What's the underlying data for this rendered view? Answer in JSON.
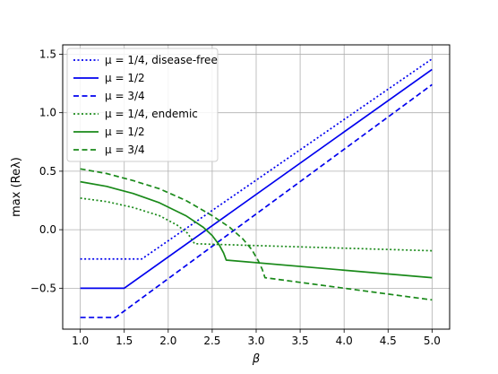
{
  "chart_data": {
    "type": "line",
    "xlabel": "β",
    "ylabel": "max (Reλ)",
    "xlim": [
      0.8,
      5.2
    ],
    "ylim": [
      -0.85,
      1.58
    ],
    "xticks": [
      "1.0",
      "1.5",
      "2.0",
      "2.5",
      "3.0",
      "3.5",
      "4.0",
      "4.5",
      "5.0"
    ],
    "yticks": [
      "−0.5",
      "0.0",
      "0.5",
      "1.0",
      "1.5"
    ],
    "grid": true,
    "legend_position": "top-left",
    "series": [
      {
        "name": "μ = 1/4, disease-free",
        "color": "#0000ee",
        "dash": "dotted",
        "points": [
          [
            1.0,
            -0.25
          ],
          [
            1.7,
            -0.25
          ],
          [
            5.0,
            1.46
          ]
        ]
      },
      {
        "name": "μ = 1/2",
        "color": "#0000ee",
        "dash": "solid",
        "points": [
          [
            1.0,
            -0.5
          ],
          [
            1.5,
            -0.5
          ],
          [
            5.0,
            1.37
          ]
        ]
      },
      {
        "name": "μ = 3/4",
        "color": "#0000ee",
        "dash": "dashed",
        "points": [
          [
            1.0,
            -0.75
          ],
          [
            1.4,
            -0.75
          ],
          [
            5.0,
            1.24
          ]
        ]
      },
      {
        "name": "μ = 1/4, endemic",
        "color": "#1a8a1a",
        "dash": "dotted",
        "points": [
          [
            1.0,
            0.27
          ],
          [
            1.3,
            0.24
          ],
          [
            1.6,
            0.19
          ],
          [
            1.9,
            0.12
          ],
          [
            2.1,
            0.04
          ],
          [
            2.22,
            -0.03
          ],
          [
            2.3,
            -0.12
          ],
          [
            5.0,
            -0.18
          ]
        ]
      },
      {
        "name": "μ = 1/2",
        "color": "#1a8a1a",
        "dash": "solid",
        "points": [
          [
            1.0,
            0.41
          ],
          [
            1.3,
            0.37
          ],
          [
            1.6,
            0.31
          ],
          [
            1.9,
            0.23
          ],
          [
            2.2,
            0.12
          ],
          [
            2.4,
            0.02
          ],
          [
            2.5,
            -0.05
          ],
          [
            2.58,
            -0.13
          ],
          [
            2.63,
            -0.2
          ],
          [
            2.66,
            -0.26
          ],
          [
            5.0,
            -0.41
          ]
        ]
      },
      {
        "name": "μ = 3/4",
        "color": "#1a8a1a",
        "dash": "dashed",
        "points": [
          [
            1.0,
            0.52
          ],
          [
            1.3,
            0.48
          ],
          [
            1.6,
            0.42
          ],
          [
            1.9,
            0.35
          ],
          [
            2.2,
            0.25
          ],
          [
            2.5,
            0.12
          ],
          [
            2.7,
            0.02
          ],
          [
            2.85,
            -0.08
          ],
          [
            2.95,
            -0.17
          ],
          [
            3.02,
            -0.26
          ],
          [
            3.07,
            -0.34
          ],
          [
            3.1,
            -0.41
          ],
          [
            5.0,
            -0.6
          ]
        ]
      }
    ]
  }
}
